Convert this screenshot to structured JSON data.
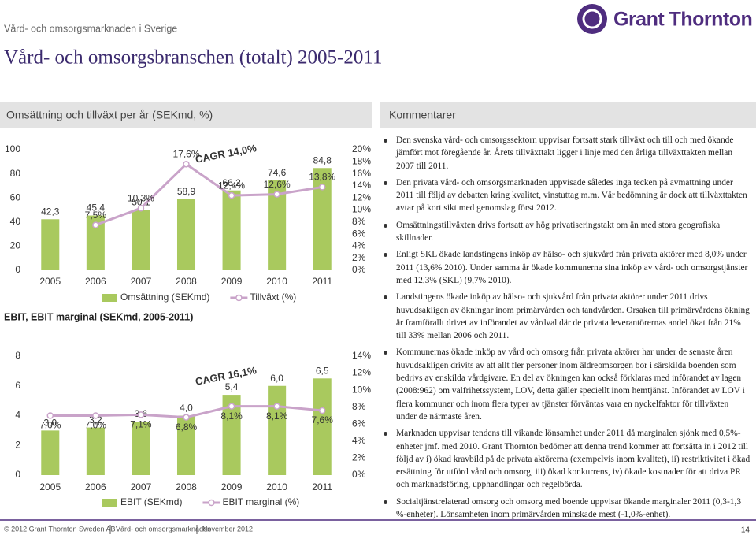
{
  "header": {
    "section": "Vård- och omsorgsmarknaden i Sverige",
    "title": "Vård- och omsorgsbranschen (totalt) 2005-2011",
    "logo": "Grant Thornton"
  },
  "chart_data": [
    {
      "type": "bar",
      "title": "Omsättning och tillväxt per år (SEKmd, %)",
      "categories": [
        "2005",
        "2006",
        "2007",
        "2008",
        "2009",
        "2010",
        "2011"
      ],
      "series": [
        {
          "name": "Omsättning (SEKmd)",
          "type": "bar",
          "color": "#a9c95e",
          "values": [
            42.3,
            45.4,
            50.1,
            58.9,
            66.2,
            74.6,
            84.8
          ],
          "value_labels": [
            "42,3",
            "45,4",
            "50,1",
            "58,9",
            "66,2",
            "74,6",
            "84,8"
          ]
        },
        {
          "name": "Tillväxt (%)",
          "type": "line",
          "axis": "y2",
          "color": "#c9a3c9",
          "values": [
            null,
            7.5,
            10.3,
            17.6,
            12.4,
            12.6,
            13.8
          ],
          "value_labels": [
            null,
            "7,5%",
            "10,3%",
            "17,6%",
            "12,4%",
            "12,6%",
            "13,8%"
          ]
        }
      ],
      "ylim": [
        0,
        100
      ],
      "yticks": [
        0,
        20,
        40,
        60,
        80,
        100
      ],
      "y2lim": [
        0,
        20
      ],
      "y2ticks": [
        {
          "value": 0,
          "label": "0%"
        },
        {
          "value": 2,
          "label": "2%"
        },
        {
          "value": 4,
          "label": "4%"
        },
        {
          "value": 6,
          "label": "6%"
        },
        {
          "value": 8,
          "label": "8%"
        },
        {
          "value": 10,
          "label": "10%"
        },
        {
          "value": 12,
          "label": "12%"
        },
        {
          "value": 14,
          "label": "14%"
        },
        {
          "value": 16,
          "label": "16%"
        },
        {
          "value": 18,
          "label": "18%"
        },
        {
          "value": 20,
          "label": "20%"
        }
      ],
      "annotation": "CAGR 14,0%",
      "grid": false
    },
    {
      "type": "bar",
      "title": "EBIT, EBIT marginal (SEKmd, 2005-2011)",
      "categories": [
        "2005",
        "2006",
        "2007",
        "2008",
        "2009",
        "2010",
        "2011"
      ],
      "series": [
        {
          "name": "EBIT (SEKmd)",
          "type": "bar",
          "color": "#a9c95e",
          "values": [
            3.0,
            3.2,
            3.6,
            4.0,
            5.4,
            6.0,
            6.5
          ],
          "value_labels": [
            "3,0",
            "3,2",
            "3,6",
            "4,0",
            "5,4",
            "6,0",
            "6,5"
          ]
        },
        {
          "name": "EBIT marginal (%)",
          "type": "line",
          "axis": "y2",
          "color": "#c9a3c9",
          "values": [
            7.0,
            7.0,
            7.1,
            6.8,
            8.1,
            8.1,
            7.6
          ],
          "value_labels": [
            "7,0%",
            "7,0%",
            "7,1%",
            "6,8%",
            "8,1%",
            "8,1%",
            "7,6%"
          ]
        }
      ],
      "ylim": [
        0,
        8
      ],
      "yticks": [
        0,
        2,
        4,
        6,
        8
      ],
      "y2lim": [
        0,
        14
      ],
      "y2ticks": [
        {
          "value": 0,
          "label": "0%"
        },
        {
          "value": 2,
          "label": "2%"
        },
        {
          "value": 4,
          "label": "4%"
        },
        {
          "value": 6,
          "label": "6%"
        },
        {
          "value": 8,
          "label": "8%"
        },
        {
          "value": 10,
          "label": "10%"
        },
        {
          "value": 12,
          "label": "12%"
        },
        {
          "value": 14,
          "label": "14%"
        }
      ],
      "annotation": "CAGR 16,1%",
      "grid": false
    }
  ],
  "comments": {
    "title": "Kommentarer",
    "bullets": [
      "Den svenska vård- och omsorgssektorn uppvisar fortsatt stark tillväxt och till och med ökande jämfört mot föregående år. Årets tillväxttakt ligger i linje med den årliga tillväxttakten mellan 2007 till 2011.",
      "Den privata vård- och omsorgsmarknaden uppvisade således inga tecken på avmattning under 2011 till följd av debatten kring kvalitet, vinstuttag m.m. Vår bedömning är dock att tillväxttakten avtar på kort sikt med genomslag först 2012.",
      "Omsättningstillväxten drivs fortsatt av hög privatiseringstakt om än med stora geografiska skillnader.",
      "Enligt SKL ökade landstingens inköp av hälso- och sjukvård från privata aktörer med 8,0% under 2011 (13,6% 2010). Under samma år ökade kommunerna sina inköp av vård- och omsorgstjänster med 12,3% (SKL) (9,7% 2010).",
      "Landstingens ökade inköp av hälso- och sjukvård från privata aktörer under 2011 drivs huvudsakligen av ökningar inom primärvården och tandvården. Orsaken till primärvårdens ökning är framförallt drivet av införandet av vårdval där de privata leverantörernas andel ökat från 21% till 33% mellan 2006 och 2011.",
      "Kommunernas ökade inköp av vård och omsorg från privata aktörer har under de senaste åren huvudsakligen drivits av att allt fler personer inom äldreomsorgen bor i särskilda boenden som bedrivs av enskilda vårdgivare. En del av ökningen kan också förklaras med införandet av lagen (2008:962) om valfrihetssystem, LOV, detta gäller speciellt inom hemtjänst. Införandet av LOV i flera kommuner och inom flera typer av tjänster förväntas vara en nyckelfaktor för tillväxten under de närmaste åren.",
      "Marknaden uppvisar tendens till vikande lönsamhet under 2011 då marginalen sjönk med 0,5%-enheter jmf. med 2010. Grant Thornton bedömer att denna trend kommer att fortsätta in i 2012 till följd av i) ökad kravbild på de privata aktörerna (exempelvis inom kvalitet), ii) restriktivitet i ökad ersättning för utförd vård och omsorg, iii) ökad konkurrens, iv) ökade kostnader för att driva PR och marknadsföring, upphandlingar och regelbörda.",
      "Socialtjänstrelaterad omsorg och omsorg med boende uppvisar ökande marginaler 2011 (0,3-1,3 %-enheter). Lönsamheten inom primärvården minskade mest (-1,0%-enhet)."
    ]
  },
  "footer": {
    "copyright": "© 2012 Grant Thornton Sweden AB",
    "document": "Vård- och omsorgsmarknaden",
    "date": "November 2012",
    "page": "14"
  }
}
